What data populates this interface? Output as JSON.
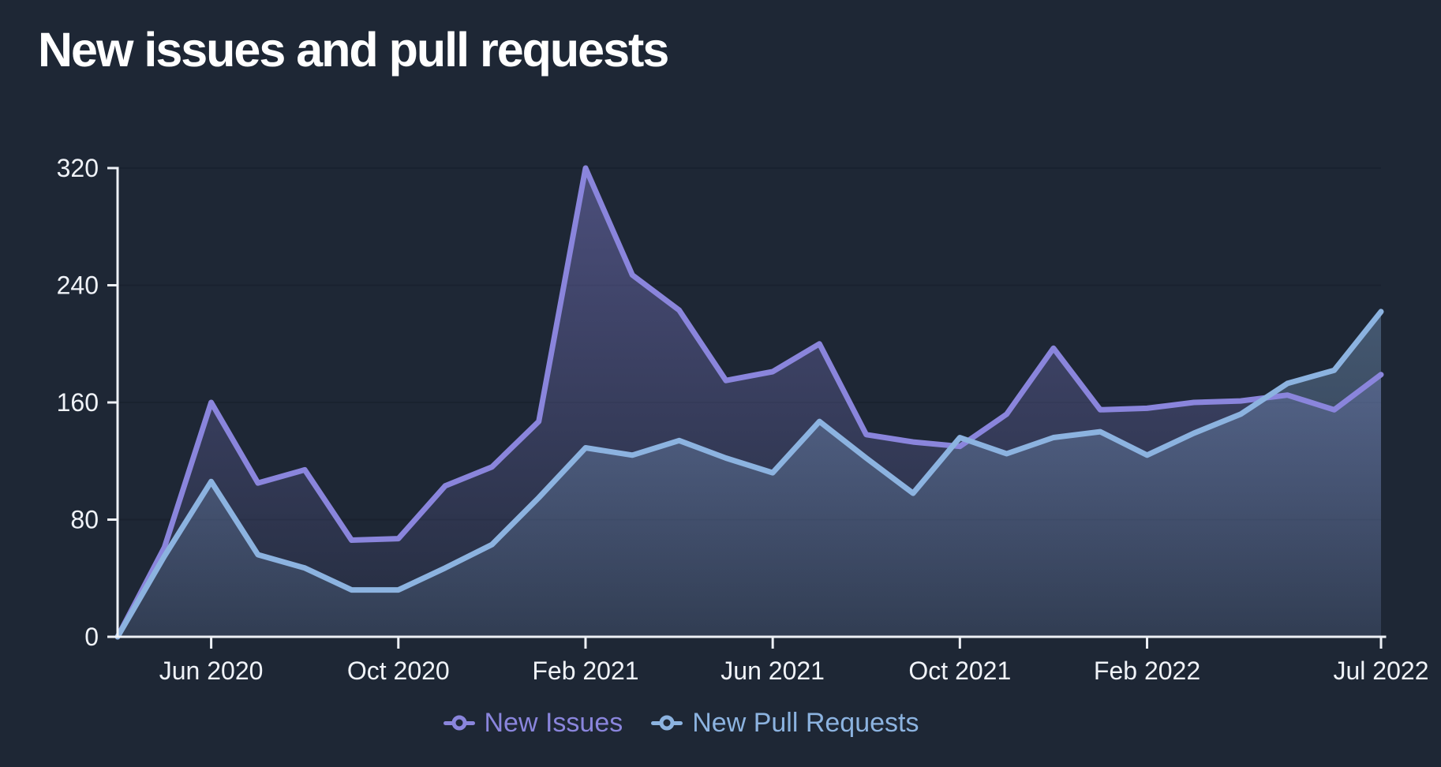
{
  "title": "New issues and pull requests",
  "colors": {
    "background": "#1e2735",
    "gridline": "#19222f",
    "axis": "#eef1f6",
    "tick_label": "#f0f3f8",
    "title": "#ffffff",
    "new_issues": "#8a85dc",
    "new_pull_requests": "#8cb3e0"
  },
  "chart_data": {
    "type": "area",
    "title": "New issues and pull requests",
    "categories": [
      "Apr 2020",
      "May 2020",
      "Jun 2020",
      "Jul 2020",
      "Aug 2020",
      "Sep 2020",
      "Oct 2020",
      "Nov 2020",
      "Dec 2020",
      "Jan 2021",
      "Feb 2021",
      "Mar 2021",
      "Apr 2021",
      "May 2021",
      "Jun 2021",
      "Jul 2021",
      "Aug 2021",
      "Sep 2021",
      "Oct 2021",
      "Nov 2021",
      "Dec 2021",
      "Jan 2022",
      "Feb 2022",
      "Mar 2022",
      "Apr 2022",
      "May 2022",
      "Jun 2022",
      "Jul 2022"
    ],
    "series": [
      {
        "name": "New Issues",
        "color": "#8a85dc",
        "values": [
          0,
          61,
          160,
          105,
          114,
          66,
          67,
          103,
          116,
          147,
          320,
          247,
          223,
          175,
          181,
          200,
          138,
          133,
          130,
          152,
          197,
          155,
          156,
          160,
          161,
          165,
          155,
          179
        ]
      },
      {
        "name": "New Pull Requests",
        "color": "#8cb3e0",
        "values": [
          0,
          55,
          106,
          56,
          47,
          32,
          32,
          47,
          63,
          95,
          129,
          124,
          134,
          122,
          112,
          147,
          122,
          98,
          136,
          125,
          136,
          140,
          124,
          139,
          152,
          173,
          182,
          222
        ]
      }
    ],
    "xlabel": "",
    "ylabel": "",
    "ylim": [
      0,
      320
    ],
    "y_ticks": [
      0,
      80,
      160,
      240,
      320
    ],
    "x_tick_labels": [
      "Jun 2020",
      "Oct 2020",
      "Feb 2021",
      "Jun 2021",
      "Oct 2021",
      "Feb 2022",
      "Jul 2022"
    ],
    "x_tick_indices": [
      2,
      6,
      10,
      14,
      18,
      22,
      27
    ],
    "grid": "horizontal",
    "legend_position": "bottom"
  }
}
